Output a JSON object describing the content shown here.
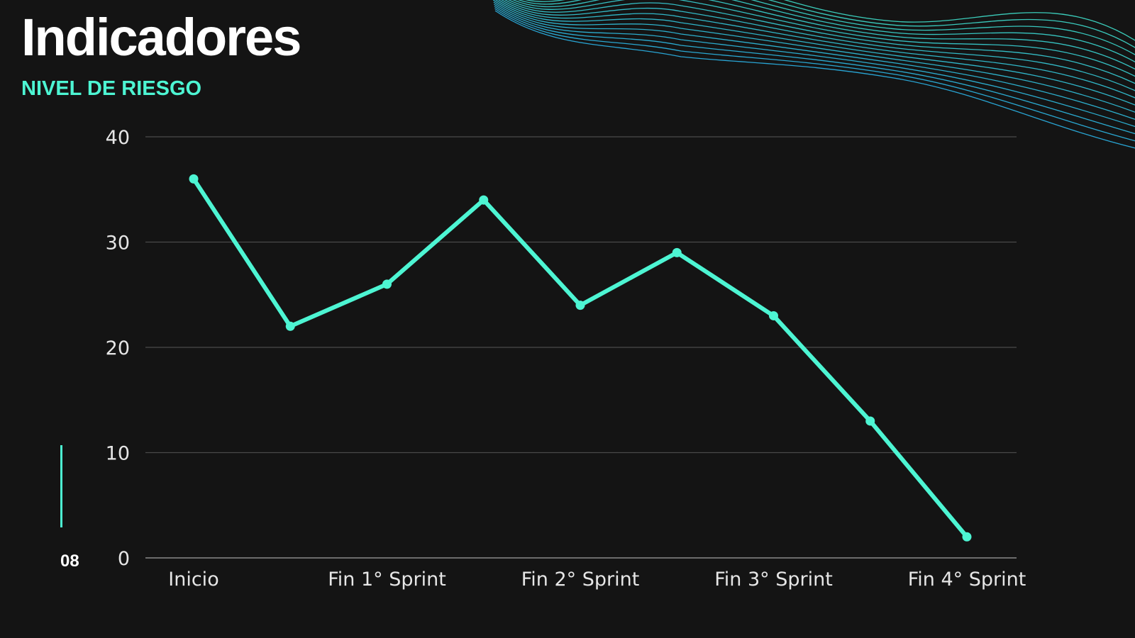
{
  "header": {
    "title": "Indicadores",
    "subtitle": "NIVEL DE RIESGO"
  },
  "page": {
    "number": "08"
  },
  "colors": {
    "background": "#141414",
    "accent": "#4df5d3",
    "wave_teal": "#3fe0cc",
    "wave_blue": "#2bb4e8",
    "grid": "#4a4a4a",
    "text": "#ffffff"
  },
  "chart_data": {
    "type": "line",
    "title": "",
    "xlabel": "",
    "ylabel": "",
    "ylim": [
      0,
      40
    ],
    "yticks": [
      0,
      10,
      20,
      30,
      40
    ],
    "grid": true,
    "categories": [
      "Inicio",
      "",
      "Fin 1° Sprint",
      "",
      "Fin 2° Sprint",
      "",
      "Fin 3° Sprint",
      "",
      "Fin 4° Sprint"
    ],
    "x_tick_labels": [
      "Inicio",
      "Fin 1° Sprint",
      "Fin 2° Sprint",
      "Fin 3° Sprint",
      "Fin 4° Sprint"
    ],
    "series": [
      {
        "values": [
          36,
          22,
          26,
          34,
          24,
          29,
          23,
          13,
          2
        ],
        "color": "#4df5d3"
      }
    ]
  }
}
